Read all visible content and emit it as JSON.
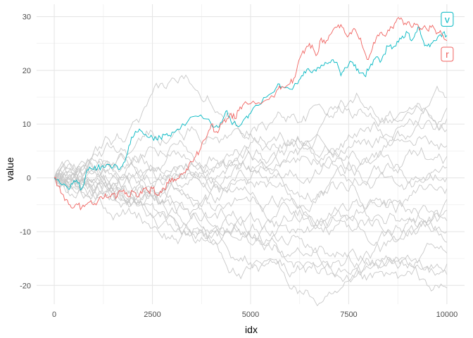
{
  "chart_data": {
    "type": "line",
    "xlabel": "idx",
    "ylabel": "value",
    "xlim": [
      -450,
      10450
    ],
    "ylim": [
      -23.5,
      32.3
    ],
    "x_ticks": [
      0,
      2500,
      5000,
      7500,
      10000
    ],
    "y_ticks": [
      -20,
      -10,
      0,
      10,
      20,
      30
    ],
    "grid": true,
    "background_series_color": "#c8c8c8",
    "highlighted": [
      {
        "name": "v",
        "color": "#00b7c2",
        "points": [
          [
            0,
            0
          ],
          [
            150,
            -1
          ],
          [
            300,
            -1.5
          ],
          [
            400,
            -2
          ],
          [
            500,
            -0.5
          ],
          [
            600,
            -1
          ],
          [
            700,
            -2
          ],
          [
            800,
            0.5
          ],
          [
            900,
            2
          ],
          [
            1000,
            1.5
          ],
          [
            1100,
            1.8
          ],
          [
            1200,
            2
          ],
          [
            1300,
            2
          ],
          [
            1400,
            2.5
          ],
          [
            1500,
            2
          ],
          [
            1600,
            2.2
          ],
          [
            1700,
            2
          ],
          [
            1800,
            3
          ],
          [
            1900,
            6
          ],
          [
            2000,
            7.5
          ],
          [
            2100,
            8.5
          ],
          [
            2200,
            8.8
          ],
          [
            2300,
            8
          ],
          [
            2400,
            7.5
          ],
          [
            2500,
            7.5
          ],
          [
            2600,
            7.2
          ],
          [
            2700,
            7.5
          ],
          [
            2800,
            8
          ],
          [
            2900,
            7.8
          ],
          [
            3000,
            8.5
          ],
          [
            3200,
            9
          ],
          [
            3400,
            10.5
          ],
          [
            3600,
            11.5
          ],
          [
            3800,
            11
          ],
          [
            4000,
            10
          ],
          [
            4100,
            9.5
          ],
          [
            4200,
            9.5
          ],
          [
            4300,
            11
          ],
          [
            4400,
            12.5
          ],
          [
            4500,
            10.5
          ],
          [
            4600,
            10.5
          ],
          [
            4700,
            9.5
          ],
          [
            4800,
            10.5
          ],
          [
            4900,
            11.5
          ],
          [
            5000,
            12
          ],
          [
            5200,
            13.5
          ],
          [
            5400,
            15
          ],
          [
            5600,
            16
          ],
          [
            5700,
            17.5
          ],
          [
            5800,
            17
          ],
          [
            6000,
            16.5
          ],
          [
            6200,
            17.5
          ],
          [
            6300,
            19
          ],
          [
            6400,
            19.5
          ],
          [
            6500,
            20
          ],
          [
            6600,
            20
          ],
          [
            6700,
            20.5
          ],
          [
            6800,
            21
          ],
          [
            6900,
            21.5
          ],
          [
            7000,
            21.5
          ],
          [
            7100,
            22
          ],
          [
            7200,
            21.5
          ],
          [
            7300,
            19
          ],
          [
            7400,
            20.5
          ],
          [
            7600,
            21.5
          ],
          [
            7700,
            20
          ],
          [
            7800,
            19.5
          ],
          [
            7900,
            19
          ],
          [
            8000,
            20
          ],
          [
            8100,
            21
          ],
          [
            8200,
            22.5
          ],
          [
            8300,
            21.5
          ],
          [
            8400,
            23
          ],
          [
            8500,
            24.5
          ],
          [
            8600,
            24
          ],
          [
            8700,
            24.5
          ],
          [
            8800,
            26
          ],
          [
            8900,
            26
          ],
          [
            9000,
            27
          ],
          [
            9100,
            25.5
          ],
          [
            9200,
            27
          ],
          [
            9300,
            28
          ],
          [
            9400,
            25.5
          ],
          [
            9500,
            24.5
          ],
          [
            9600,
            25
          ],
          [
            9700,
            25.5
          ],
          [
            9800,
            26.5
          ],
          [
            9900,
            27
          ],
          [
            10000,
            26.5
          ]
        ]
      },
      {
        "name": "r",
        "color": "#f0625f",
        "points": [
          [
            0,
            0
          ],
          [
            100,
            -1.5
          ],
          [
            200,
            -3
          ],
          [
            300,
            -4
          ],
          [
            400,
            -5
          ],
          [
            500,
            -5.5
          ],
          [
            600,
            -5
          ],
          [
            700,
            -5.5
          ],
          [
            800,
            -5
          ],
          [
            900,
            -4.5
          ],
          [
            1000,
            -5
          ],
          [
            1100,
            -4.5
          ],
          [
            1200,
            -3.5
          ],
          [
            1300,
            -3
          ],
          [
            1400,
            -3.5
          ],
          [
            1500,
            -3
          ],
          [
            1600,
            -3.5
          ],
          [
            1700,
            -2.5
          ],
          [
            1800,
            -3
          ],
          [
            1900,
            -3.5
          ],
          [
            2000,
            -2.5
          ],
          [
            2100,
            -3.5
          ],
          [
            2200,
            -2.5
          ],
          [
            2300,
            -2
          ],
          [
            2400,
            -2.5
          ],
          [
            2500,
            -2
          ],
          [
            2600,
            -3
          ],
          [
            2700,
            -2.5
          ],
          [
            2800,
            -2
          ],
          [
            2900,
            -1
          ],
          [
            3000,
            0
          ],
          [
            3100,
            -0.5
          ],
          [
            3200,
            0.5
          ],
          [
            3300,
            1
          ],
          [
            3400,
            1.5
          ],
          [
            3500,
            3
          ],
          [
            3600,
            4
          ],
          [
            3700,
            5
          ],
          [
            3800,
            7
          ],
          [
            3900,
            8
          ],
          [
            4000,
            10
          ],
          [
            4100,
            8.5
          ],
          [
            4200,
            9
          ],
          [
            4300,
            10.5
          ],
          [
            4400,
            11
          ],
          [
            4500,
            12
          ],
          [
            4600,
            11
          ],
          [
            4700,
            12.5
          ],
          [
            4800,
            13.5
          ],
          [
            5000,
            13.8
          ],
          [
            5200,
            14
          ],
          [
            5400,
            14.5
          ],
          [
            5600,
            15
          ],
          [
            5700,
            16.5
          ],
          [
            5800,
            17
          ],
          [
            6000,
            17.5
          ],
          [
            6100,
            18.5
          ],
          [
            6200,
            21
          ],
          [
            6300,
            23
          ],
          [
            6400,
            24
          ],
          [
            6500,
            25
          ],
          [
            6600,
            24
          ],
          [
            6700,
            23
          ],
          [
            6800,
            26
          ],
          [
            6900,
            25
          ],
          [
            7000,
            26.5
          ],
          [
            7100,
            27.5
          ],
          [
            7200,
            28
          ],
          [
            7300,
            28.5
          ],
          [
            7400,
            27
          ],
          [
            7500,
            26.5
          ],
          [
            7600,
            27.5
          ],
          [
            7700,
            27
          ],
          [
            7800,
            26
          ],
          [
            7900,
            23.5
          ],
          [
            8000,
            22
          ],
          [
            8100,
            24
          ],
          [
            8200,
            26
          ],
          [
            8300,
            27
          ],
          [
            8400,
            26.5
          ],
          [
            8500,
            27.5
          ],
          [
            8600,
            28
          ],
          [
            8700,
            29
          ],
          [
            8800,
            29.5
          ],
          [
            8900,
            28.5
          ],
          [
            9000,
            29
          ],
          [
            9100,
            28
          ],
          [
            9200,
            28.5
          ],
          [
            9300,
            27.5
          ],
          [
            9400,
            28
          ],
          [
            9500,
            27.5
          ],
          [
            9600,
            28
          ],
          [
            9700,
            27.5
          ],
          [
            9800,
            27
          ],
          [
            9900,
            26.5
          ],
          [
            10000,
            25.5
          ]
        ]
      }
    ],
    "labels": [
      {
        "text": "v",
        "series": "v",
        "x": 10000,
        "y": 29.5
      },
      {
        "text": "r",
        "series": "r",
        "x": 10000,
        "y": 23.0
      }
    ],
    "background_series": [
      {
        "start": 0,
        "end": 15
      },
      {
        "start": 0,
        "end": 13
      },
      {
        "start": 0,
        "end": 11
      },
      {
        "start": 0,
        "end": 9
      },
      {
        "start": 0,
        "end": 6
      },
      {
        "start": 0,
        "end": 4
      },
      {
        "start": 0,
        "end": 2
      },
      {
        "start": 0,
        "end": 0
      },
      {
        "start": 0,
        "end": -2
      },
      {
        "start": 0,
        "end": -4
      },
      {
        "start": 0,
        "end": -6
      },
      {
        "start": 0,
        "end": -8
      },
      {
        "start": 0,
        "end": -10
      },
      {
        "start": 0,
        "end": -12
      },
      {
        "start": 0,
        "end": -14
      },
      {
        "start": 0,
        "end": -16
      },
      {
        "start": 0,
        "end": -18
      },
      {
        "start": 0,
        "end": -20.5
      }
    ]
  }
}
